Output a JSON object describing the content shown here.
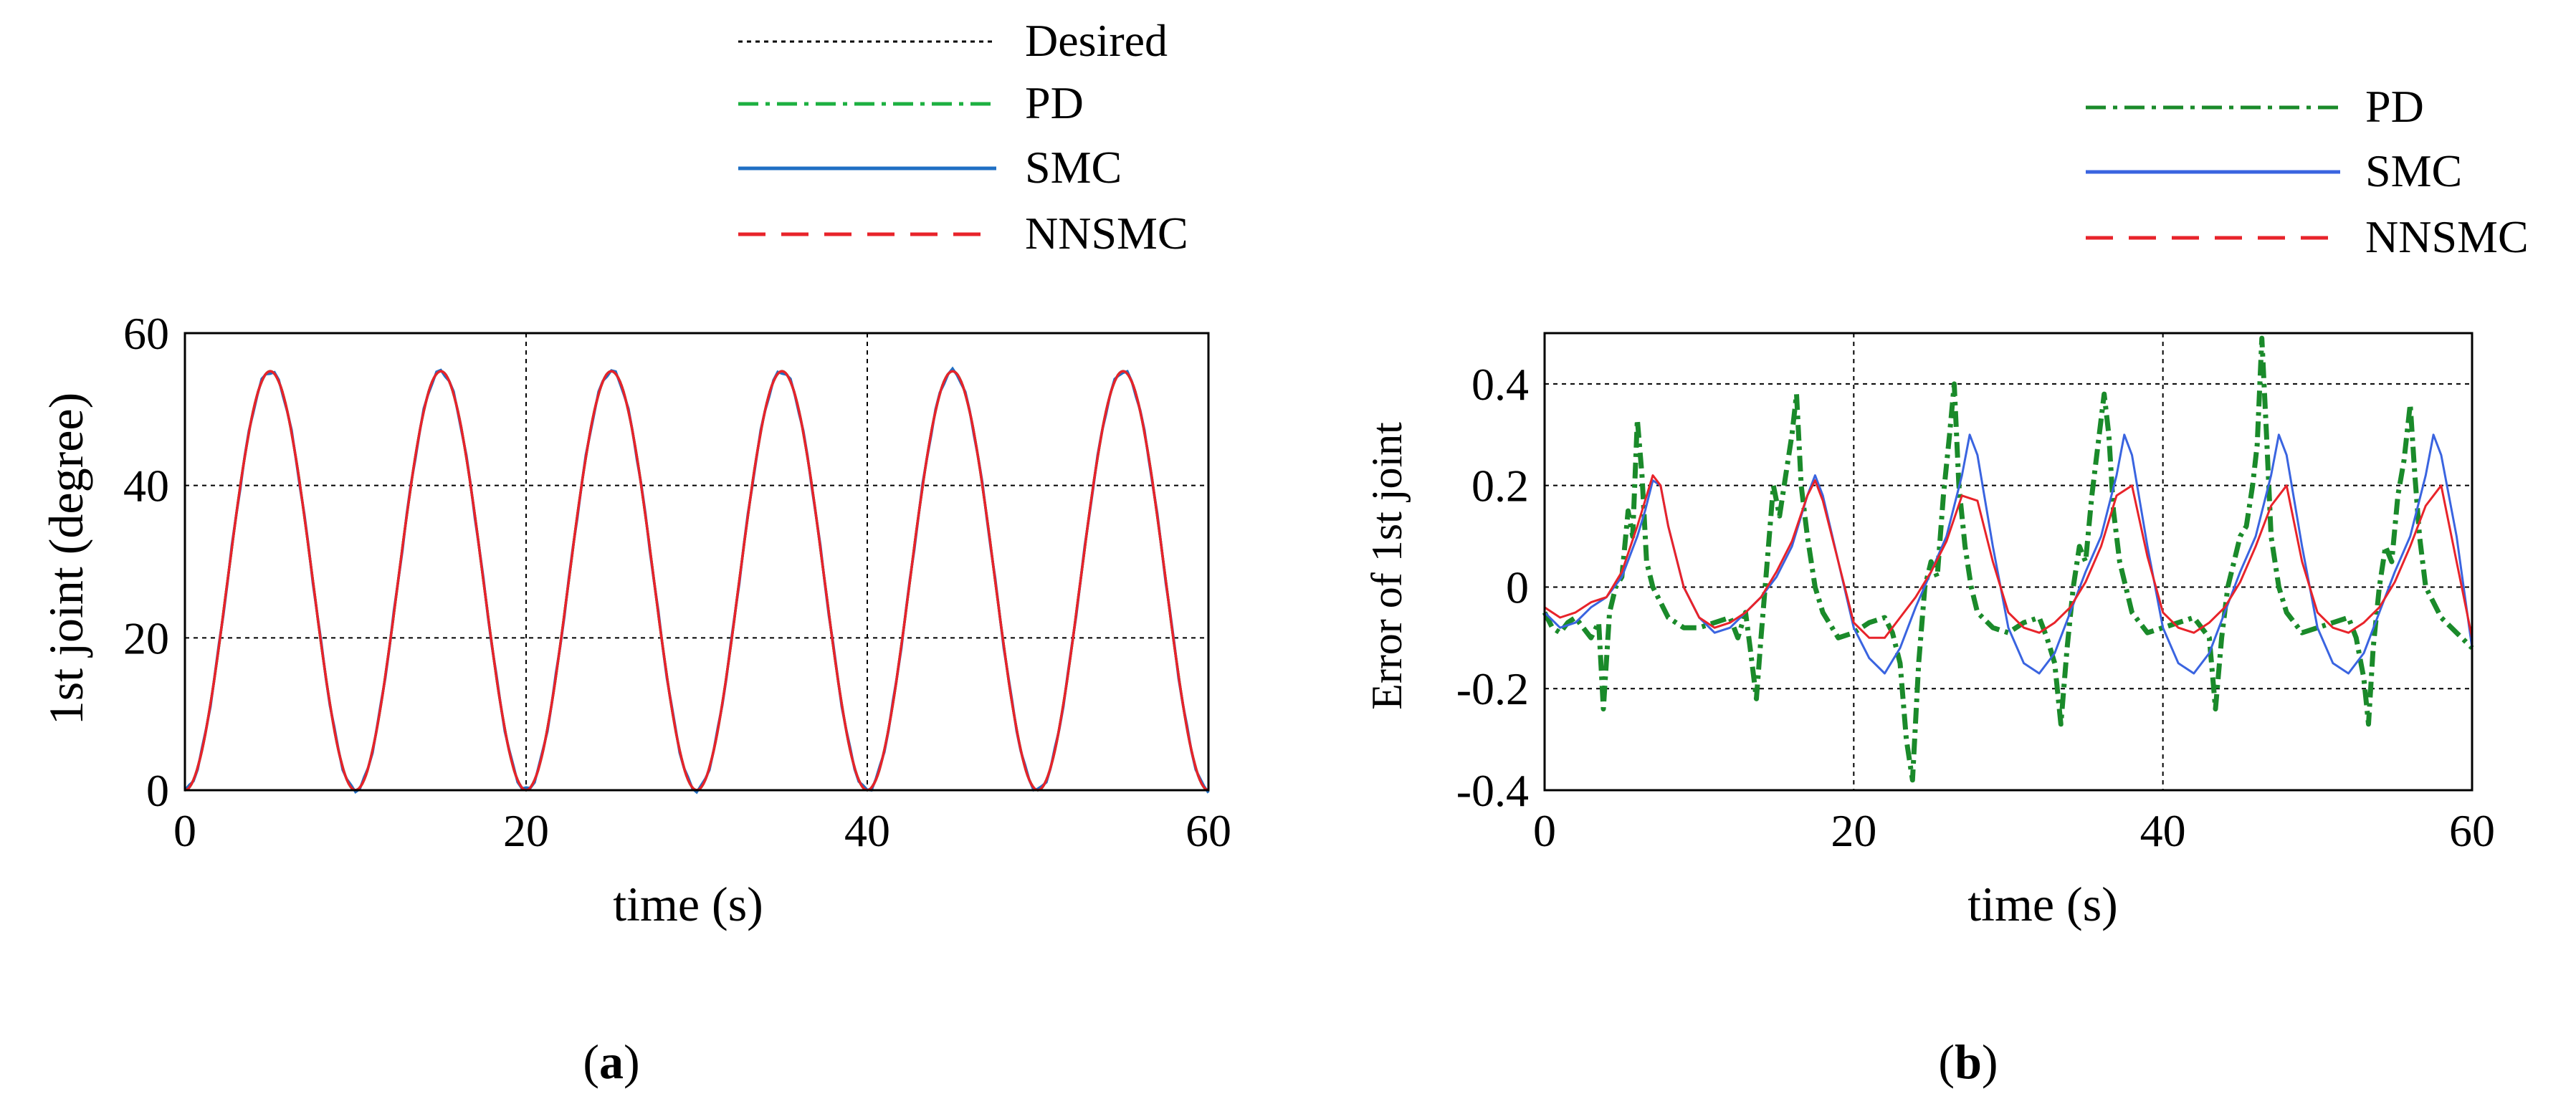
{
  "chart_data": [
    {
      "type": "line",
      "panel_label": "a",
      "xlabel": "time (s)",
      "ylabel": "1st joint (degree)",
      "xlim": [
        0,
        60
      ],
      "ylim": [
        0,
        60
      ],
      "xticks": [
        0,
        20,
        40,
        60
      ],
      "yticks": [
        0,
        20,
        40,
        60
      ],
      "xtick_labels": [
        "0",
        "20",
        "40",
        "60"
      ],
      "ytick_labels": [
        "0",
        "20",
        "40",
        "60"
      ],
      "grid": true,
      "legend_position": "top, above plot",
      "signal": {
        "form": "27.5*(1-cos(2*pi*t/10))",
        "amplitude": 27.5,
        "offset": 27.5,
        "period": 10,
        "peak": 55
      },
      "legend": [
        {
          "name": "Desired",
          "color": "#000000",
          "style": "dotted"
        },
        {
          "name": "PD",
          "color": "#1db041",
          "style": "dash-dot"
        },
        {
          "name": "SMC",
          "color": "#1f6fc4",
          "style": "solid"
        },
        {
          "name": "NNSMC",
          "color": "#e8232a",
          "style": "dashed"
        }
      ]
    },
    {
      "type": "line",
      "panel_label": "b",
      "xlabel": "time (s)",
      "ylabel": "Error of 1st joint",
      "xlim": [
        0,
        60
      ],
      "ylim": [
        -0.4,
        0.5
      ],
      "xticks": [
        0,
        20,
        40,
        60
      ],
      "yticks": [
        -0.4,
        -0.2,
        0,
        0.2,
        0.4
      ],
      "xtick_labels": [
        "0",
        "20",
        "40",
        "60"
      ],
      "ytick_labels": [
        "-0.4",
        "-0.2",
        "0",
        "0.2",
        "0.4"
      ],
      "grid": true,
      "legend_position": "top-right, above plot",
      "legend": [
        {
          "name": "PD",
          "color": "#1a8a2a",
          "style": "dash-dot"
        },
        {
          "name": "SMC",
          "color": "#3a64e0",
          "style": "solid"
        },
        {
          "name": "NNSMC",
          "color": "#e8232a",
          "style": "dashed"
        }
      ],
      "series": [
        {
          "name": "PD",
          "x": [
            0,
            0.5,
            1,
            1.5,
            2,
            2.5,
            3,
            3.5,
            3.8,
            4.2,
            4.6,
            5.0,
            5.4,
            5.7,
            6.0,
            6.3,
            6.6,
            7.0,
            7.5,
            8,
            9,
            10,
            11,
            12,
            12.5,
            13,
            13.3,
            13.7,
            14,
            14.4,
            14.8,
            15.2,
            15.6,
            16.0,
            16.3,
            16.6,
            17.0,
            17.5,
            18,
            19,
            20,
            21,
            22,
            22.5,
            23,
            23.4,
            23.8,
            24.2,
            24.6,
            25.0,
            25.4,
            25.8,
            26.2,
            26.5,
            26.8,
            27.2,
            27.6,
            28,
            29,
            30,
            31,
            32,
            32.5,
            33,
            33.4,
            33.8,
            34.2,
            34.6,
            35.0,
            35.4,
            35.8,
            36.2,
            36.5,
            36.8,
            37.2,
            37.6,
            38,
            39,
            40,
            41,
            42,
            43,
            43.4,
            43.8,
            44.2,
            44.6,
            45.0,
            45.4,
            45.8,
            46.1,
            46.4,
            46.7,
            47.0,
            47.5,
            48,
            49,
            50,
            51,
            52,
            52.5,
            53,
            53.3,
            53.6,
            54.0,
            54.4,
            54.8,
            55.2,
            55.6,
            56.0,
            56.3,
            56.6,
            57.0,
            57.5,
            58,
            59,
            60
          ],
          "y": [
            -0.05,
            -0.08,
            -0.09,
            -0.07,
            -0.06,
            -0.08,
            -0.1,
            -0.07,
            -0.24,
            -0.05,
            0.0,
            0.02,
            0.15,
            0.1,
            0.33,
            0.22,
            0.05,
            0.0,
            -0.03,
            -0.06,
            -0.08,
            -0.08,
            -0.07,
            -0.06,
            -0.1,
            -0.05,
            -0.12,
            -0.22,
            -0.1,
            0.05,
            0.2,
            0.14,
            0.22,
            0.3,
            0.38,
            0.2,
            0.1,
            0.0,
            -0.05,
            -0.1,
            -0.09,
            -0.07,
            -0.06,
            -0.09,
            -0.15,
            -0.3,
            -0.38,
            -0.15,
            0.0,
            0.05,
            0.02,
            0.18,
            0.3,
            0.4,
            0.2,
            0.08,
            0.0,
            -0.05,
            -0.08,
            -0.09,
            -0.07,
            -0.06,
            -0.1,
            -0.15,
            -0.27,
            -0.12,
            0.0,
            0.08,
            0.05,
            0.18,
            0.28,
            0.38,
            0.3,
            0.15,
            0.05,
            0.0,
            -0.05,
            -0.09,
            -0.08,
            -0.07,
            -0.06,
            -0.1,
            -0.24,
            -0.1,
            0.0,
            0.05,
            0.1,
            0.12,
            0.2,
            0.28,
            0.49,
            0.3,
            0.1,
            0.0,
            -0.05,
            -0.09,
            -0.08,
            -0.07,
            -0.06,
            -0.1,
            -0.18,
            -0.27,
            -0.12,
            0.0,
            0.08,
            0.05,
            0.18,
            0.25,
            0.36,
            0.22,
            0.1,
            0.0,
            -0.03,
            -0.06,
            -0.09,
            -0.12
          ]
        },
        {
          "name": "SMC",
          "x": [
            0,
            1,
            2,
            3,
            4,
            5,
            6,
            6.5,
            7,
            7.5,
            8,
            9,
            10,
            11,
            12,
            13,
            14,
            15,
            16,
            17,
            17.5,
            18,
            19,
            20,
            21,
            22,
            23,
            24,
            25,
            26,
            27,
            27.5,
            28,
            29,
            30,
            31,
            32,
            33,
            34,
            35,
            36,
            37,
            37.5,
            38,
            39,
            40,
            41,
            42,
            43,
            44,
            45,
            46,
            47,
            47.5,
            48,
            49,
            50,
            51,
            52,
            53,
            54,
            55,
            56,
            57,
            57.5,
            58,
            59,
            60
          ],
          "y": [
            -0.05,
            -0.08,
            -0.07,
            -0.04,
            -0.02,
            0.02,
            0.1,
            0.15,
            0.21,
            0.2,
            0.12,
            0.0,
            -0.06,
            -0.09,
            -0.08,
            -0.05,
            -0.02,
            0.02,
            0.08,
            0.18,
            0.22,
            0.18,
            0.05,
            -0.08,
            -0.14,
            -0.17,
            -0.12,
            -0.04,
            0.03,
            0.1,
            0.22,
            0.3,
            0.26,
            0.08,
            -0.08,
            -0.15,
            -0.17,
            -0.13,
            -0.05,
            0.03,
            0.1,
            0.22,
            0.3,
            0.26,
            0.08,
            -0.08,
            -0.15,
            -0.17,
            -0.13,
            -0.05,
            0.03,
            0.1,
            0.22,
            0.3,
            0.26,
            0.08,
            -0.08,
            -0.15,
            -0.17,
            -0.13,
            -0.05,
            0.03,
            0.1,
            0.22,
            0.3,
            0.26,
            0.1,
            -0.12
          ]
        },
        {
          "name": "NNSMC",
          "x": [
            0,
            1,
            2,
            3,
            4,
            5,
            6,
            6.5,
            7,
            7.5,
            8,
            9,
            10,
            11,
            12,
            13,
            14,
            15,
            16,
            17,
            17.5,
            18,
            19,
            20,
            21,
            22,
            23,
            24,
            25,
            26,
            27,
            28,
            29,
            30,
            31,
            32,
            33,
            34,
            35,
            36,
            37,
            38,
            39,
            40,
            41,
            42,
            43,
            44,
            45,
            46,
            47,
            48,
            49,
            50,
            51,
            52,
            53,
            54,
            55,
            56,
            57,
            58,
            59,
            60
          ],
          "y": [
            -0.04,
            -0.06,
            -0.05,
            -0.03,
            -0.02,
            0.03,
            0.12,
            0.17,
            0.22,
            0.2,
            0.12,
            0.0,
            -0.06,
            -0.08,
            -0.07,
            -0.05,
            -0.02,
            0.03,
            0.09,
            0.18,
            0.21,
            0.17,
            0.05,
            -0.07,
            -0.1,
            -0.1,
            -0.06,
            -0.02,
            0.03,
            0.09,
            0.18,
            0.17,
            0.05,
            -0.05,
            -0.08,
            -0.09,
            -0.07,
            -0.04,
            0.01,
            0.08,
            0.18,
            0.2,
            0.06,
            -0.05,
            -0.08,
            -0.09,
            -0.07,
            -0.04,
            0.01,
            0.08,
            0.16,
            0.2,
            0.05,
            -0.05,
            -0.08,
            -0.09,
            -0.07,
            -0.04,
            0.01,
            0.08,
            0.16,
            0.2,
            0.05,
            -0.1
          ]
        }
      ]
    }
  ]
}
